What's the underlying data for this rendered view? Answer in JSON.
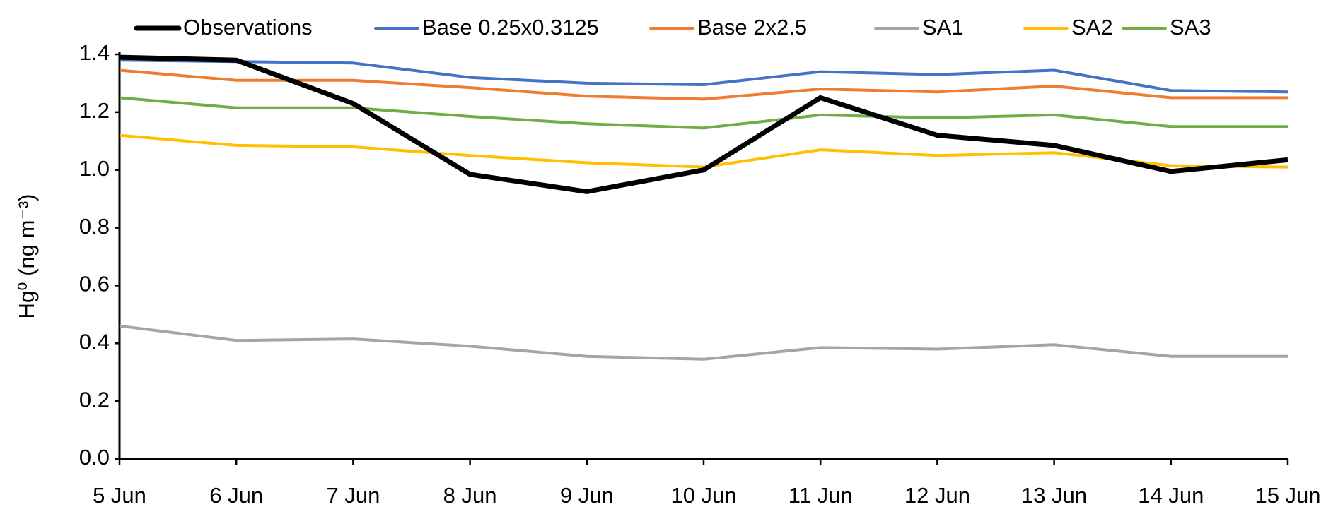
{
  "chart_data": {
    "type": "line",
    "y_label": "Hg⁰ (ng m⁻³)",
    "categories": [
      "5 Jun",
      "6 Jun",
      "7 Jun",
      "8 Jun",
      "9 Jun",
      "10 Jun",
      "11 Jun",
      "12 Jun",
      "13 Jun",
      "14 Jun",
      "15 Jun"
    ],
    "series": [
      {
        "name": "Observations",
        "color": "#000000",
        "values": [
          1.39,
          1.38,
          1.23,
          0.985,
          0.925,
          1.0,
          1.25,
          1.12,
          1.085,
          0.995,
          1.035
        ]
      },
      {
        "name": "Base 0.25x0.3125",
        "color": "#4472c4",
        "values": [
          1.38,
          1.375,
          1.37,
          1.32,
          1.3,
          1.295,
          1.34,
          1.33,
          1.345,
          1.275,
          1.27
        ]
      },
      {
        "name": "Base 2x2.5",
        "color": "#ed7d31",
        "values": [
          1.345,
          1.31,
          1.31,
          1.285,
          1.255,
          1.245,
          1.28,
          1.27,
          1.29,
          1.25,
          1.25
        ]
      },
      {
        "name": "SA1",
        "color": "#a5a5a5",
        "values": [
          0.46,
          0.41,
          0.415,
          0.39,
          0.355,
          0.345,
          0.385,
          0.38,
          0.395,
          0.355,
          0.355
        ]
      },
      {
        "name": "SA2",
        "color": "#ffc000",
        "values": [
          1.12,
          1.085,
          1.08,
          1.05,
          1.025,
          1.01,
          1.07,
          1.05,
          1.06,
          1.015,
          1.01
        ]
      },
      {
        "name": "SA3",
        "color": "#70ad47",
        "values": [
          1.25,
          1.215,
          1.215,
          1.185,
          1.16,
          1.145,
          1.19,
          1.18,
          1.19,
          1.15,
          1.15
        ]
      }
    ],
    "ylim": [
      0,
      1.4
    ],
    "yticks": [
      {
        "value": 0,
        "label": "0.0"
      },
      0.2,
      0.4,
      0.6,
      0.8,
      {
        "value": 1,
        "label": "1.0"
      },
      1.2,
      1.4
    ],
    "grid": false,
    "legend": "top"
  }
}
